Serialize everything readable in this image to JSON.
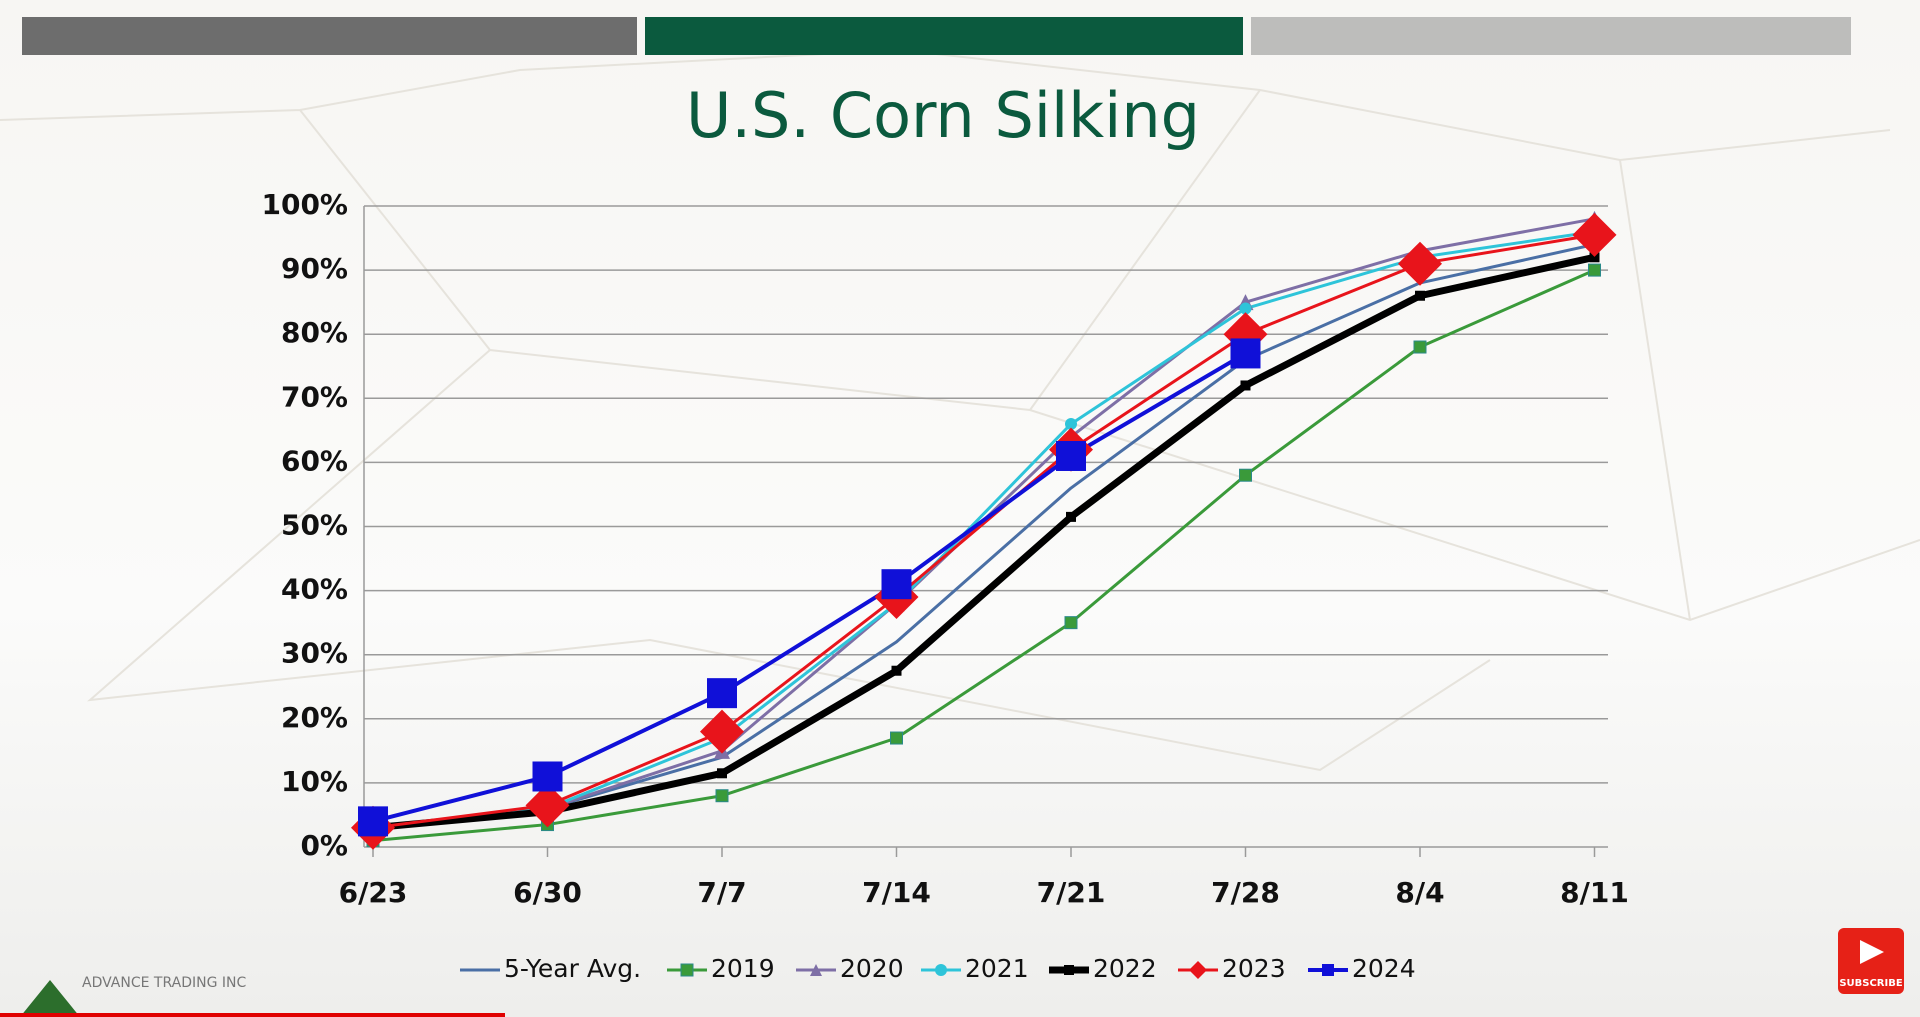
{
  "chart_data": {
    "type": "line",
    "title": "U.S. Corn Silking",
    "categories": [
      "6/23",
      "6/30",
      "7/7",
      "7/14",
      "7/21",
      "7/28",
      "8/4",
      "8/11"
    ],
    "ylim": [
      0,
      100
    ],
    "yticks": [
      {
        "value": 0,
        "label": "0%"
      },
      {
        "value": 10,
        "label": "10%"
      },
      {
        "value": 20,
        "label": "20%"
      },
      {
        "value": 30,
        "label": "30%"
      },
      {
        "value": 40,
        "label": "40%"
      },
      {
        "value": 50,
        "label": "50%"
      },
      {
        "value": 60,
        "label": "60%"
      },
      {
        "value": 70,
        "label": "70%"
      },
      {
        "value": 80,
        "label": "80%"
      },
      {
        "value": 90,
        "label": "90%"
      },
      {
        "value": 100,
        "label": "100%"
      }
    ],
    "grid": true,
    "legend": "bottom",
    "series": [
      {
        "name": "5-Year Avg.",
        "color": "#4a6fa5",
        "marker": "none",
        "values": [
          3,
          6,
          14,
          32,
          56,
          76,
          88,
          94
        ]
      },
      {
        "name": "2019",
        "color": "#3a9a3a",
        "marker": "square",
        "values": [
          1,
          3.5,
          8,
          17,
          35,
          58,
          78,
          90
        ]
      },
      {
        "name": "2020",
        "color": "#7e6fa6",
        "marker": "triangle",
        "values": [
          3,
          6,
          15,
          38,
          64,
          85,
          93,
          98
        ]
      },
      {
        "name": "2021",
        "color": "#2ec4d9",
        "marker": "circle",
        "values": [
          3,
          6,
          17,
          38,
          66,
          84,
          92,
          96
        ]
      },
      {
        "name": "2022",
        "color": "#000000",
        "marker": "square",
        "values": [
          3,
          5.5,
          11.5,
          27.5,
          51.5,
          72,
          86,
          92
        ]
      },
      {
        "name": "2023",
        "color": "#e8141b",
        "marker": "diamond",
        "values": [
          3,
          6.5,
          18,
          39,
          62,
          80,
          91,
          95.5
        ]
      },
      {
        "name": "2024",
        "color": "#1010d8",
        "marker": "bigsquare",
        "values": [
          4,
          11,
          24,
          41,
          61,
          77,
          null,
          null
        ]
      }
    ]
  },
  "branding": {
    "company": "ADVANCE TRADING INC",
    "button": "SUBSCRIBE"
  }
}
